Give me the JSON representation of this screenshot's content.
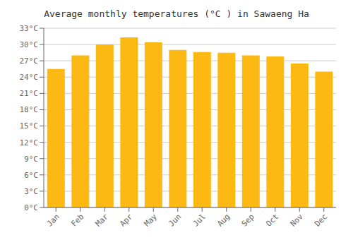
{
  "chart_data": {
    "type": "bar",
    "title": "Average monthly temperatures (°C ) in Sawaeng Ha",
    "categories": [
      "Jan",
      "Feb",
      "Mar",
      "Apr",
      "May",
      "Jun",
      "Jul",
      "Aug",
      "Sep",
      "Oct",
      "Nov",
      "Dec"
    ],
    "values": [
      25.5,
      28.0,
      30.0,
      31.3,
      30.4,
      29.0,
      28.6,
      28.5,
      28.0,
      27.8,
      26.5,
      25.0
    ],
    "color": "#FDB913",
    "ylim": [
      0,
      33
    ],
    "yticks": [
      {
        "value": 0,
        "label": "0°C"
      },
      {
        "value": 3,
        "label": "3°C"
      },
      {
        "value": 6,
        "label": "6°C"
      },
      {
        "value": 9,
        "label": "9°C"
      },
      {
        "value": 12,
        "label": "12°C"
      },
      {
        "value": 15,
        "label": "15°C"
      },
      {
        "value": 18,
        "label": "18°C"
      },
      {
        "value": 21,
        "label": "21°C"
      },
      {
        "value": 24,
        "label": "24°C"
      },
      {
        "value": 27,
        "label": "27°C"
      },
      {
        "value": 30,
        "label": "30°C"
      },
      {
        "value": 33,
        "label": "33°C"
      }
    ],
    "grid": true
  }
}
